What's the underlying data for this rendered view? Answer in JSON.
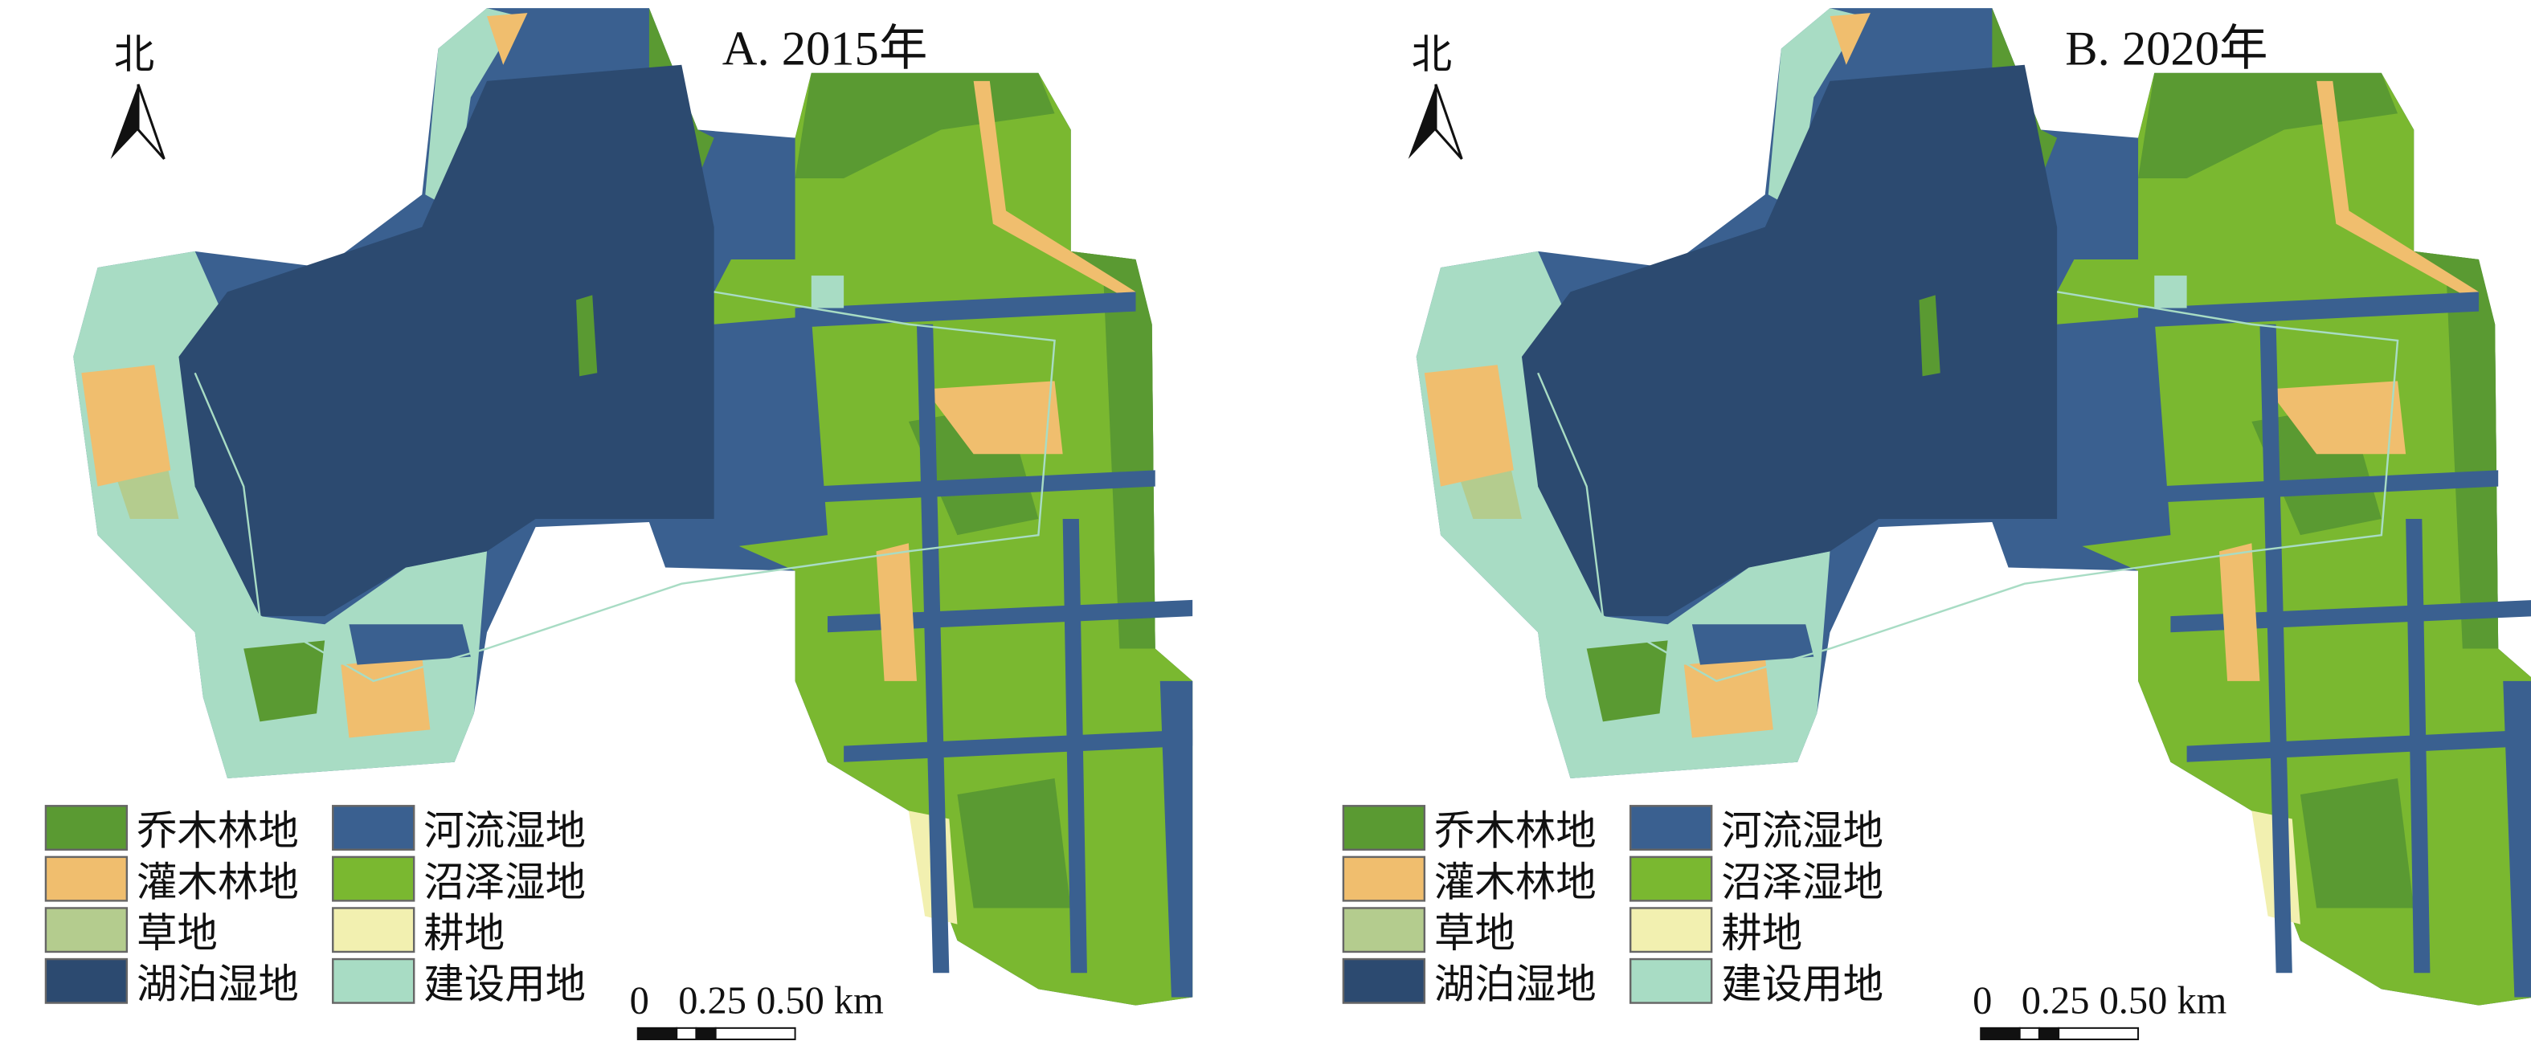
{
  "panels": [
    {
      "title": "A. 2015年",
      "north_label": "北",
      "scale_label": "0   0.25 0.50 km"
    },
    {
      "title": "B. 2020年",
      "north_label": "北",
      "scale_label": "0   0.25 0.50 km"
    }
  ],
  "legend": [
    {
      "label": "乔木林地",
      "color": "#5a9a32"
    },
    {
      "label": "灌木林地",
      "color": "#f0be6e"
    },
    {
      "label": "草地",
      "color": "#b4cc8e"
    },
    {
      "label": "湖泊湿地",
      "color": "#2c4a70"
    },
    {
      "label": "河流湿地",
      "color": "#3a6090"
    },
    {
      "label": "沼泽湿地",
      "color": "#7ab830"
    },
    {
      "label": "耕地",
      "color": "#f2f0b0"
    },
    {
      "label": "建设用地",
      "color": "#a8dcc4"
    }
  ]
}
